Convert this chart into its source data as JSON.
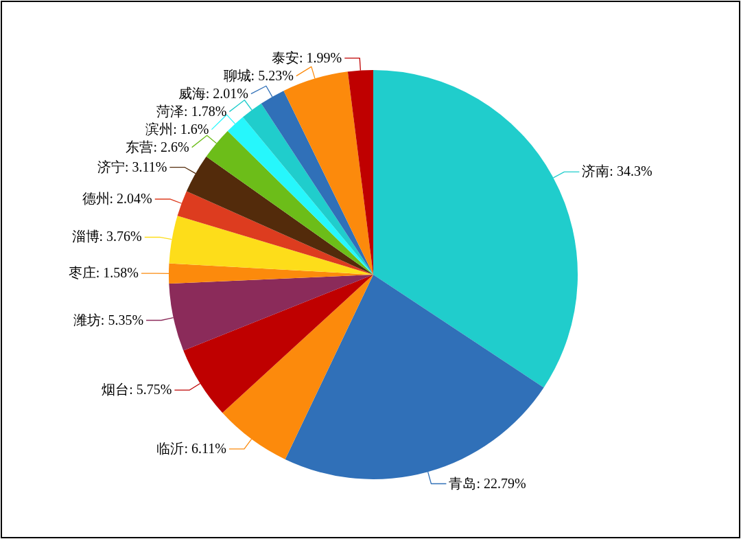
{
  "chart_data": {
    "type": "pie",
    "categories": [
      "济南",
      "青岛",
      "临沂",
      "烟台",
      "潍坊",
      "枣庄",
      "淄博",
      "德州",
      "济宁",
      "东营",
      "滨州",
      "菏泽",
      "威海",
      "聊城",
      "泰安"
    ],
    "values": [
      34.3,
      22.79,
      6.11,
      5.75,
      5.35,
      1.58,
      3.76,
      2.04,
      3.11,
      2.6,
      1.6,
      1.78,
      2.01,
      5.23,
      1.99
    ],
    "value_labels": [
      "34.3%",
      "22.79%",
      "6.11%",
      "5.75%",
      "5.35%",
      "1.58%",
      "3.76%",
      "2.04%",
      "3.11%",
      "2.6%",
      "1.6%",
      "1.78%",
      "2.01%",
      "5.23%",
      "1.99%"
    ],
    "colors": [
      "#20cdcc",
      "#3070b8",
      "#fc8a0c",
      "#bf0000",
      "#8b2b5a",
      "#fc8a0c",
      "#fddd1a",
      "#dd3c1f",
      "#532b0b",
      "#6cbd19",
      "#26f7fc",
      "#20cdcc",
      "#3070b8",
      "#fc8a0c",
      "#bf0000"
    ]
  }
}
